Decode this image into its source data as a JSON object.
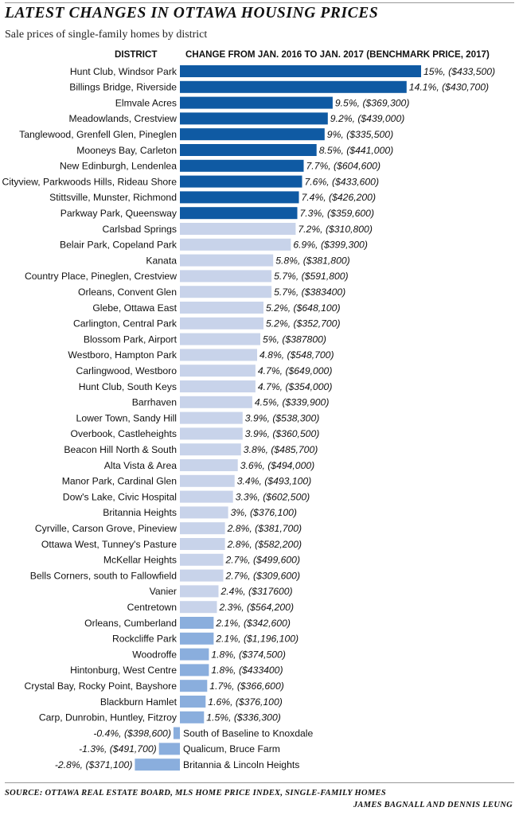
{
  "title": "LATEST CHANGES IN OTTAWA HOUSING PRICES",
  "subtitle": "Sale prices of single-family homes by district",
  "colors": {
    "dark": "#0f5aa3",
    "light": "#c8d3ea",
    "mid": "#8aaedd"
  },
  "chart_data": {
    "type": "bar",
    "orientation": "horizontal",
    "xlabel": "CHANGE FROM JAN. 2016 TO JAN. 2017 (BENCHMARK PRICE, 2017)",
    "ylabel": "DISTRICT",
    "unit": "%",
    "grid": false,
    "categories": [
      "Hunt Club, Windsor Park",
      "Billings Bridge, Riverside",
      "Elmvale Acres",
      "Meadowlands, Crestview",
      "Tanglewood, Grenfell Glen, Pineglen",
      "Mooneys Bay, Carleton",
      "New Edinburgh, Lendenlea",
      "Cityview, Parkwoods Hills, Rideau Shore",
      "Stittsville, Munster, Richmond",
      "Parkway Park, Queensway",
      "Carlsbad Springs",
      "Belair Park, Copeland Park",
      "Kanata",
      "Country Place, Pineglen, Crestview",
      "Orleans, Convent Glen",
      "Glebe, Ottawa East",
      "Carlington, Central Park",
      "Blossom Park, Airport",
      "Westboro, Hampton Park",
      "Carlingwood, Westboro",
      "Hunt Club, South Keys",
      "Barrhaven",
      "Lower Town, Sandy Hill",
      "Overbook, Castleheights",
      "Beacon Hill North & South",
      "Alta Vista & Area",
      "Manor Park, Cardinal Glen",
      "Dow's Lake, Civic Hospital",
      "Britannia Heights",
      "Cyrville, Carson Grove, Pineview",
      "Ottawa West, Tunney's Pasture",
      "McKellar Heights",
      "Bells Corners, south to Fallowfield",
      "Vanier",
      "Centretown",
      "Orleans, Cumberland",
      "Rockcliffe Park",
      "Woodroffe",
      "Hintonburg, West Centre",
      "Crystal Bay, Rocky Point, Bayshore",
      "Blackburn Hamlet",
      "Carp, Dunrobin, Huntley, Fitzroy",
      "South of Baseline to Knoxdale",
      "Qualicum, Bruce Farm",
      "Britannia & Lincoln Heights"
    ],
    "values": [
      15,
      14.1,
      9.5,
      9.2,
      9,
      8.5,
      7.7,
      7.6,
      7.4,
      7.3,
      7.2,
      6.9,
      5.8,
      5.7,
      5.7,
      5.2,
      5.2,
      5,
      4.8,
      4.7,
      4.7,
      4.5,
      3.9,
      3.9,
      3.8,
      3.6,
      3.4,
      3.3,
      3,
      2.8,
      2.8,
      2.7,
      2.7,
      2.4,
      2.3,
      2.1,
      2.1,
      1.8,
      1.8,
      1.7,
      1.6,
      1.5,
      -0.4,
      -1.3,
      -2.8
    ],
    "labels": [
      "15%, ($433,500)",
      "14.1%, ($430,700)",
      "9.5%, ($369,300)",
      "9.2%, ($439,000)",
      "9%, ($335,500)",
      "8.5%, ($441,000)",
      "7.7%, ($604,600)",
      "7.6%, ($433,600)",
      "7.4%, ($426,200)",
      "7.3%, ($359,600)",
      "7.2%, ($310,800)",
      "6.9%, ($399,300)",
      "5.8%, ($381,800)",
      "5.7%, ($591,800)",
      "5.7%, ($383400)",
      "5.2%, ($648,100)",
      "5.2%, ($352,700)",
      "5%, ($387800)",
      "4.8%, ($548,700)",
      "4.7%, ($649,000)",
      "4.7%, ($354,000)",
      "4.5%, ($339,900)",
      "3.9%, ($538,300)",
      "3.9%, ($360,500)",
      "3.8%, ($485,700)",
      "3.6%, ($494,000)",
      "3.4%, ($493,100)",
      "3.3%, ($602,500)",
      "3%, ($376,100)",
      "2.8%, ($381,700)",
      "2.8%, ($582,200)",
      "2.7%, ($499,600)",
      "2.7%, ($309,600)",
      "2.4%, ($317600)",
      "2.3%, ($564,200)",
      "2.1%, ($342,600)",
      "2.1%, ($1,196,100)",
      "1.8%, ($374,500)",
      "1.8%, ($433400)",
      "1.7%, ($366,600)",
      "1.6%, ($376,100)",
      "1.5%, ($336,300)",
      "-0.4%, ($398,600)",
      "-1.3%, ($491,700)",
      "-2.8%, ($371,100)"
    ],
    "color_groups": [
      "dark",
      "dark",
      "dark",
      "dark",
      "dark",
      "dark",
      "dark",
      "dark",
      "dark",
      "dark",
      "light",
      "light",
      "light",
      "light",
      "light",
      "light",
      "light",
      "light",
      "light",
      "light",
      "light",
      "light",
      "light",
      "light",
      "light",
      "light",
      "light",
      "light",
      "light",
      "light",
      "light",
      "light",
      "light",
      "light",
      "light",
      "mid",
      "mid",
      "mid",
      "mid",
      "mid",
      "mid",
      "mid",
      "mid",
      "mid",
      "mid"
    ]
  },
  "source": "SOURCE: OTTAWA REAL ESTATE BOARD, MLS HOME PRICE INDEX, SINGLE-FAMILY HOMES",
  "credit": "JAMES BAGNALL AND DENNIS LEUNG"
}
